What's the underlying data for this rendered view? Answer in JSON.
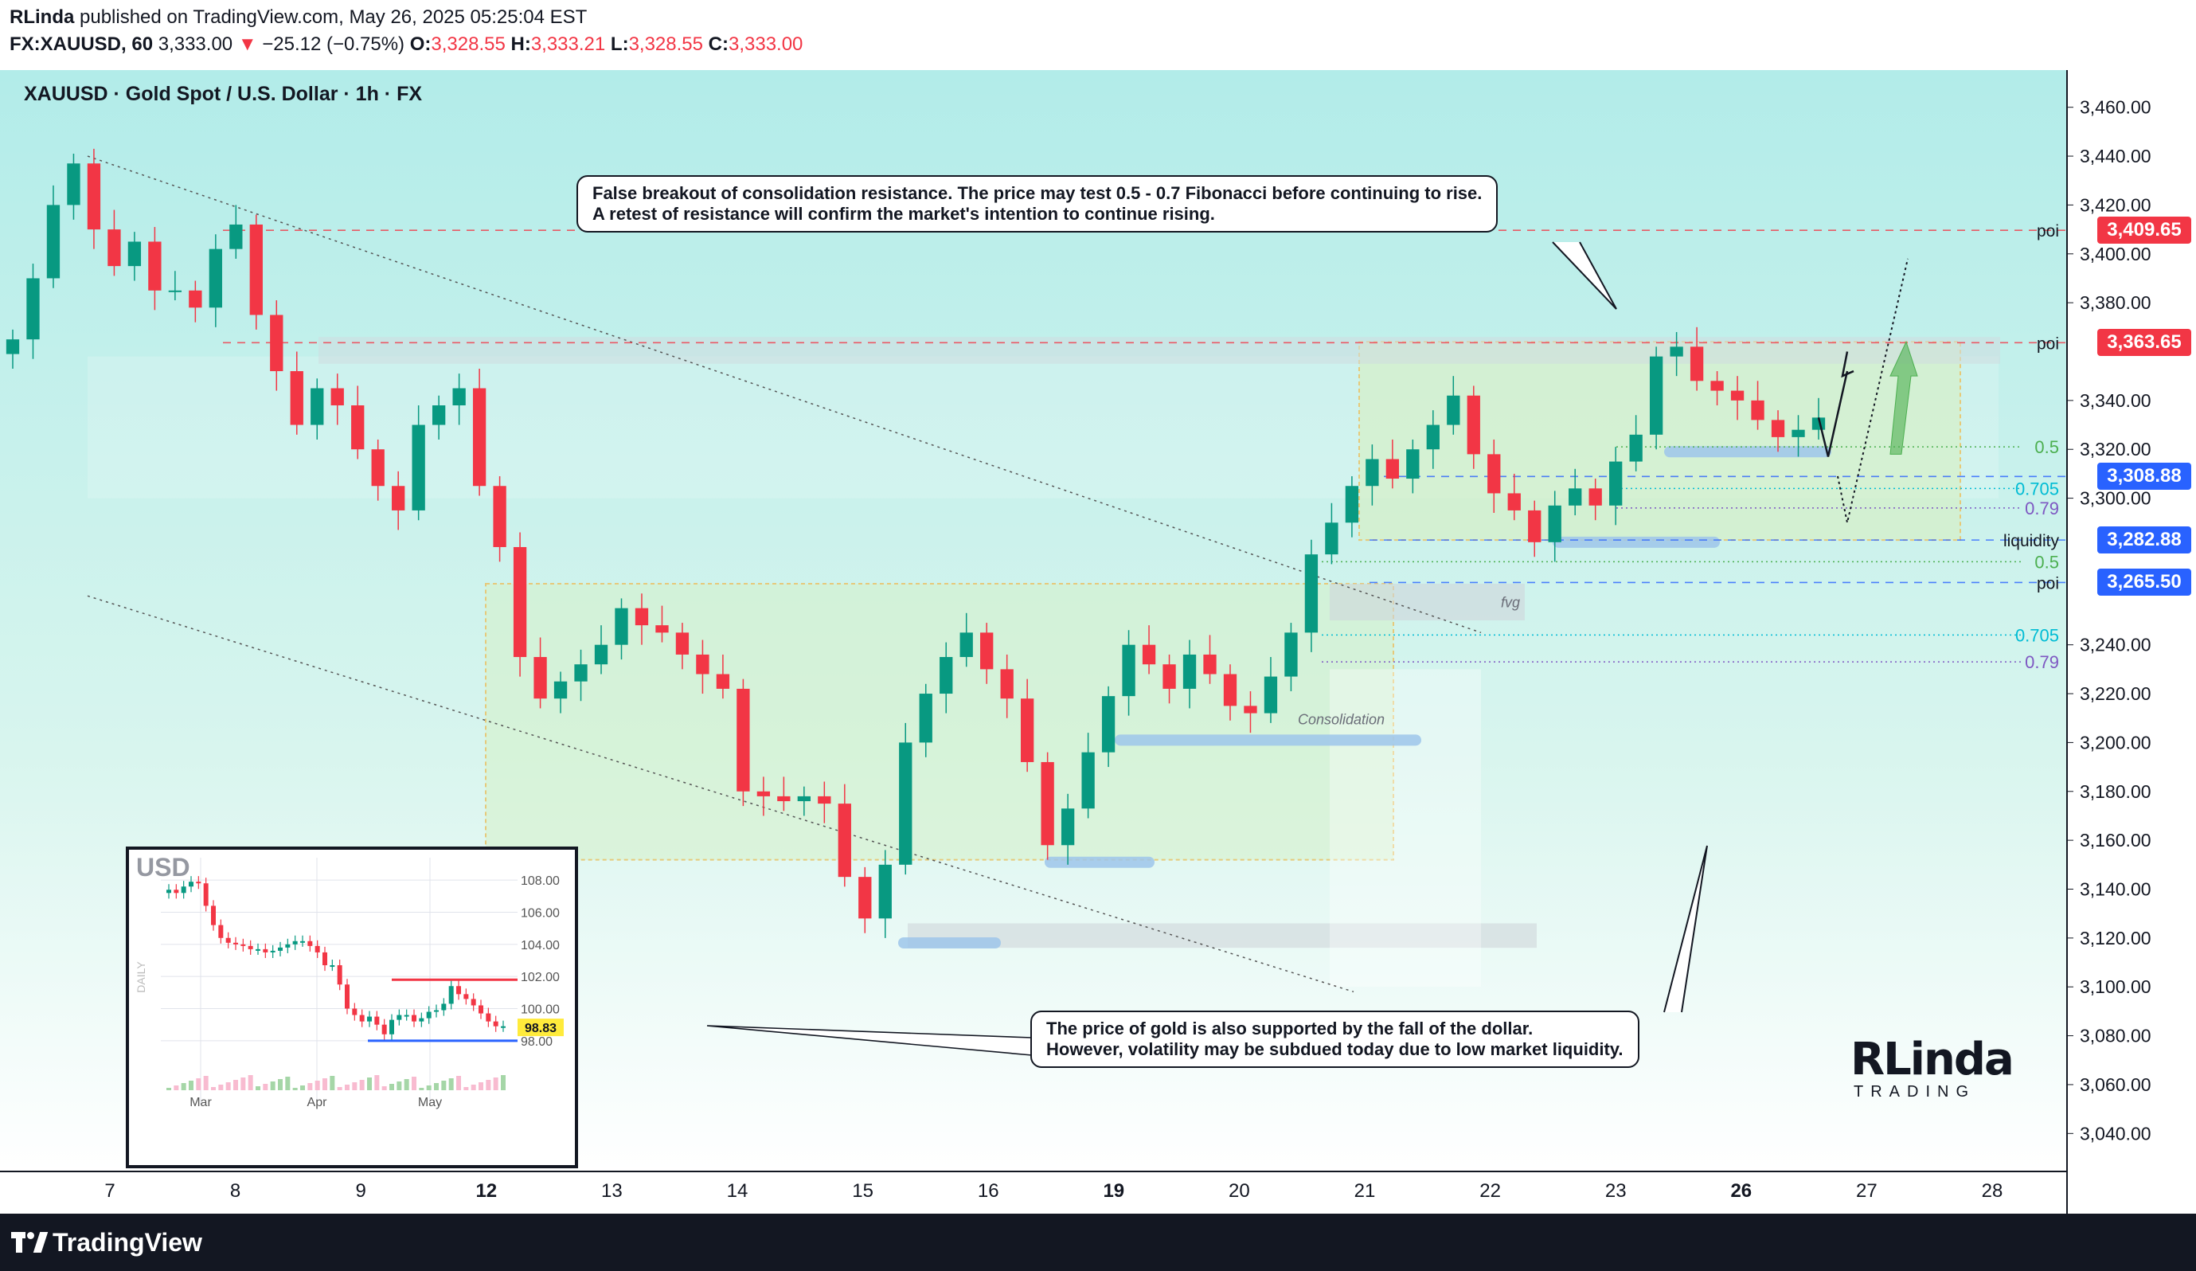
{
  "header": {
    "author": "RLinda",
    "published": "published on TradingView.com, May 26, 2025 05:25:04 EST",
    "symbol": "FX:XAUUSD, 60",
    "last": "3,333.00",
    "change": "−25.12 (−0.75%)",
    "o_label": "O:",
    "o": "3,328.55",
    "h_label": "H:",
    "h": "3,333.21",
    "l_label": "L:",
    "l": "3,328.55",
    "c_label": "C:",
    "c": "3,333.00"
  },
  "footer": {
    "brand": "TradingView"
  },
  "watermark": {
    "big": "RLinda",
    "small": "TRADING"
  },
  "colors": {
    "up": "#089981",
    "down": "#f23645",
    "bg_top": "#b2ece9",
    "bg_bottom": "#ffffff",
    "zone_green": "#d5f0c8",
    "zone_yellow": "#e6c97a",
    "poi_red": "#f23645",
    "blue": "#2962ff"
  },
  "annotations": {
    "top_line1": "False breakout of consolidation resistance. The price may test 0.5 - 0.7 Fibonacci before continuing to rise.",
    "top_line2": "A retest of resistance will confirm the market's intention to continue rising.",
    "bottom_line1": "The price of gold is also supported by the fall of the dollar.",
    "bottom_line2": "However, volatility may be subdued today due to low market liquidity."
  },
  "chart_data": {
    "type": "line",
    "title": "XAUUSD · Gold Spot / U.S. Dollar · 1h · FX",
    "ylim": [
      3030,
      3470
    ],
    "yticks": [
      "3,460.00",
      "3,440.00",
      "3,420.00",
      "3,400.00",
      "3,380.00",
      "3,340.00",
      "3,320.00",
      "3,300.00",
      "3,240.00",
      "3,220.00",
      "3,200.00",
      "3,180.00",
      "3,160.00",
      "3,140.00",
      "3,120.00",
      "3,100.00",
      "3,080.00",
      "3,060.00",
      "3,040.00"
    ],
    "ytick_values": [
      3460,
      3440,
      3420,
      3400,
      3380,
      3340,
      3320,
      3300,
      3240,
      3220,
      3200,
      3180,
      3160,
      3140,
      3120,
      3100,
      3080,
      3060,
      3040
    ],
    "xticks": [
      "7",
      "8",
      "9",
      "12",
      "13",
      "14",
      "15",
      "16",
      "19",
      "20",
      "21",
      "22",
      "23",
      "26",
      "27",
      "28"
    ],
    "xticks_bold": [
      "12",
      "19",
      "26"
    ],
    "series": [
      {
        "values": [
          3365,
          3390,
          3420,
          3437,
          3410,
          3395,
          3405,
          3385,
          3385,
          3378,
          3402,
          3412,
          3375,
          3352,
          3330,
          3345,
          3338,
          3320,
          3305,
          3295,
          3330,
          3338,
          3345,
          3305,
          3280,
          3235,
          3218,
          3225,
          3232,
          3240,
          3255,
          3248,
          3245,
          3236,
          3228,
          3222,
          3180,
          3178,
          3176,
          3178,
          3175,
          3145,
          3128,
          3150,
          3200,
          3220,
          3235,
          3245,
          3230,
          3218,
          3192,
          3158,
          3173,
          3196,
          3219,
          3240,
          3232,
          3222,
          3236,
          3228,
          3215,
          3212,
          3227,
          3245,
          3277,
          3290,
          3305,
          3316,
          3308,
          3320,
          3330,
          3342,
          3318,
          3302,
          3295,
          3282,
          3297,
          3304,
          3297,
          3315,
          3326,
          3358,
          3362,
          3348,
          3344,
          3340,
          3332,
          3325,
          3328,
          3333
        ],
        "end_text": "3,333.00"
      }
    ],
    "levels": [
      {
        "label": "poi",
        "value": 3409.65,
        "badge": "3,409.65",
        "color": "#f23645"
      },
      {
        "label": "poi",
        "value": 3363.65,
        "badge": "3,363.65",
        "color": "#f23645"
      },
      {
        "label": "",
        "value": 3308.88,
        "badge": "3,308.88",
        "color": "#2962ff"
      },
      {
        "label": "liquidity",
        "value": 3282.88,
        "badge": "3,282.88",
        "color": "#2962ff"
      },
      {
        "label": "poi",
        "value": 3265.5,
        "badge": "3,265.50",
        "color": "#2962ff"
      }
    ],
    "fib_upper": [
      {
        "label": "0.5",
        "value": 3321
      },
      {
        "label": "0.705",
        "value": 3304
      },
      {
        "label": "0.79",
        "value": 3296
      }
    ],
    "fib_lower": [
      {
        "label": "0.5",
        "value": 3274
      },
      {
        "label": "0.705",
        "value": 3244
      },
      {
        "label": "0.79",
        "value": 3233
      }
    ],
    "zone_labels": {
      "consolidation": "Consolidation",
      "fvg": "fvg"
    },
    "inset": {
      "currency": "USD",
      "period": "DAILY",
      "yticks": [
        "108.00",
        "106.00",
        "104.00",
        "102.00",
        "100.00",
        "98.00"
      ],
      "ytick_values": [
        108,
        106,
        104,
        102,
        100,
        98
      ],
      "xticks": [
        "Mar",
        "Apr",
        "May"
      ],
      "last_badge": "98.83",
      "last_value": 98.83,
      "ylim": [
        97,
        109
      ],
      "values": [
        107.4,
        107.2,
        107.6,
        107.9,
        107.8,
        106.4,
        105.2,
        104.4,
        104.1,
        104.0,
        103.9,
        103.7,
        103.7,
        103.5,
        103.6,
        103.8,
        104.0,
        104.2,
        104.2,
        103.9,
        103.5,
        102.7,
        102.7,
        101.5,
        100.0,
        99.6,
        99.2,
        99.5,
        99.0,
        98.4,
        99.3,
        99.6,
        99.6,
        99.2,
        99.4,
        99.8,
        99.9,
        100.3,
        101.4,
        100.9,
        100.6,
        100.2,
        99.7,
        99.2,
        98.9,
        98.9
      ],
      "red_level": 101.8,
      "blue_level": 98.0
    }
  }
}
